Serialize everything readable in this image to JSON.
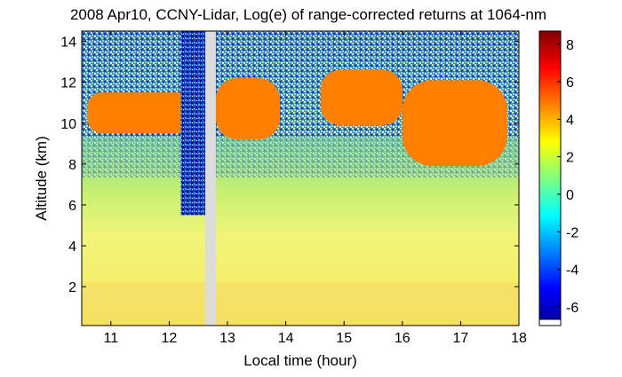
{
  "chart_data": {
    "type": "heatmap",
    "title": "2008 Apr10, CCNY-Lidar, Log(e) of range-corrected returns at 1064-nm",
    "xlabel": "Local time (hour)",
    "ylabel": "Altitude (km)",
    "xlim": [
      10.5,
      18
    ],
    "ylim": [
      0.1,
      14.5
    ],
    "xticks": [
      "11",
      "12",
      "13",
      "14",
      "15",
      "16",
      "17",
      "18"
    ],
    "yticks": [
      "2",
      "4",
      "6",
      "8",
      "10",
      "12",
      "14"
    ],
    "colorbar": {
      "ticks": [
        "-6",
        "-4",
        "-2",
        "0",
        "2",
        "4",
        "6",
        "8"
      ],
      "range": [
        -7,
        8.7
      ],
      "colors": [
        "#00008f",
        "#0000ff",
        "#0080ff",
        "#00ffff",
        "#80ff80",
        "#ffff00",
        "#ff8000",
        "#ff0000",
        "#800000"
      ]
    },
    "data_gaps": [
      [
        12.62,
        12.8
      ]
    ],
    "regions": [
      {
        "feature": "cloud layer",
        "x": [
          10.6,
          12.4
        ],
        "y": [
          9.5,
          11.5
        ],
        "value": 4.5
      },
      {
        "feature": "cloud layer",
        "x": [
          12.8,
          13.9
        ],
        "y": [
          9.2,
          12.2
        ],
        "value": 4.5
      },
      {
        "feature": "cloud layer",
        "x": [
          14.6,
          16.0
        ],
        "y": [
          9.9,
          12.6
        ],
        "value": 4
      },
      {
        "feature": "cloud layer",
        "x": [
          16.0,
          17.8
        ],
        "y": [
          7.9,
          12.1
        ],
        "value": 5
      },
      {
        "feature": "low signal region",
        "x": [
          12.2,
          12.62
        ],
        "y": [
          5.5,
          14.5
        ],
        "value": -6
      },
      {
        "feature": "boundary layer",
        "x": [
          10.5,
          18.0
        ],
        "y": [
          0.1,
          2.2
        ],
        "value": 2
      }
    ]
  }
}
